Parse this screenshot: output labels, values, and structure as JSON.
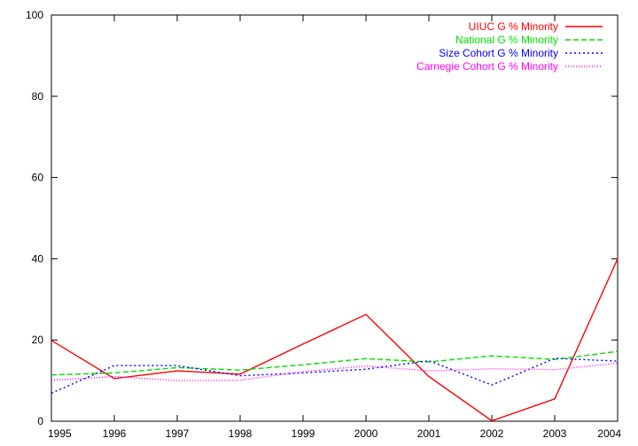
{
  "chart_data": {
    "type": "line",
    "title": "",
    "xlabel": "",
    "ylabel": "",
    "x": [
      1995,
      1996,
      1997,
      1998,
      1999,
      2000,
      2001,
      2002,
      2003,
      2004
    ],
    "xlim": [
      1995,
      2004
    ],
    "ylim": [
      0,
      100
    ],
    "x_ticks": [
      "1995",
      "1996",
      "1997",
      "1998",
      "1999",
      "2000",
      "2001",
      "2002",
      "2003",
      "2004"
    ],
    "y_ticks": [
      "0",
      "20",
      "40",
      "60",
      "80",
      "100"
    ],
    "grid": false,
    "legend_position": "top-right",
    "series": [
      {
        "name": "UIUC G % Minority",
        "color": "#ff0000",
        "dash": "solid",
        "values": [
          19.9,
          10.5,
          12.4,
          11.6,
          19.0,
          26.3,
          11.0,
          0.1,
          5.5,
          40.0
        ]
      },
      {
        "name": "National G % Minority",
        "color": "#00dd00",
        "dash": "dashed",
        "values": [
          11.4,
          11.9,
          13.2,
          12.6,
          13.9,
          15.4,
          14.6,
          16.1,
          15.2,
          17.2
        ]
      },
      {
        "name": "Size Cohort G % Minority",
        "color": "#0000ff",
        "dash": "dotted",
        "values": [
          6.9,
          13.7,
          13.7,
          11.2,
          11.9,
          12.8,
          14.9,
          8.9,
          15.5,
          14.8
        ]
      },
      {
        "name": "Carnegie Cohort G % Minority",
        "color": "#ff00ff",
        "dash": "fine-dotted",
        "values": [
          10.1,
          11.0,
          10.0,
          10.1,
          12.2,
          13.6,
          12.4,
          12.9,
          12.7,
          14.3
        ]
      }
    ]
  }
}
